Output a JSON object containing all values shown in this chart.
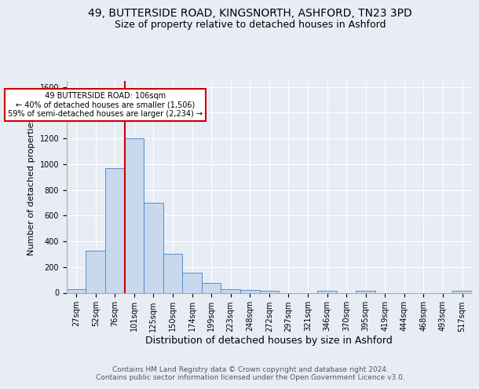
{
  "title1": "49, BUTTERSIDE ROAD, KINGSNORTH, ASHFORD, TN23 3PD",
  "title2": "Size of property relative to detached houses in Ashford",
  "xlabel": "Distribution of detached houses by size in Ashford",
  "ylabel": "Number of detached properties",
  "footer1": "Contains HM Land Registry data © Crown copyright and database right 2024.",
  "footer2": "Contains public sector information licensed under the Open Government Licence v3.0.",
  "annotation_line1": "  49 BUTTERSIDE ROAD: 106sqm  ",
  "annotation_line2": "← 40% of detached houses are smaller (1,506)",
  "annotation_line3": "59% of semi-detached houses are larger (2,234) →",
  "bar_labels": [
    "27sqm",
    "52sqm",
    "76sqm",
    "101sqm",
    "125sqm",
    "150sqm",
    "174sqm",
    "199sqm",
    "223sqm",
    "248sqm",
    "272sqm",
    "297sqm",
    "321sqm",
    "346sqm",
    "370sqm",
    "395sqm",
    "419sqm",
    "444sqm",
    "468sqm",
    "493sqm",
    "517sqm"
  ],
  "bar_values": [
    28,
    325,
    970,
    1200,
    700,
    305,
    155,
    75,
    28,
    20,
    13,
    0,
    0,
    13,
    0,
    13,
    0,
    0,
    0,
    0,
    13
  ],
  "bar_color": "#c8d8ee",
  "bar_edgecolor": "#5a8ec8",
  "vline_color": "#cc0000",
  "annotation_box_edgecolor": "#cc0000",
  "annotation_box_facecolor": "#ffffff",
  "background_color": "#e8edf5",
  "plot_background": "#e8edf5",
  "ylim": [
    0,
    1650
  ],
  "yticks": [
    0,
    200,
    400,
    600,
    800,
    1000,
    1200,
    1400,
    1600
  ],
  "grid_color": "#ffffff",
  "title1_fontsize": 10,
  "title2_fontsize": 9,
  "xlabel_fontsize": 9,
  "ylabel_fontsize": 8,
  "tick_fontsize": 7,
  "annotation_fontsize": 7,
  "footer_fontsize": 6.5
}
